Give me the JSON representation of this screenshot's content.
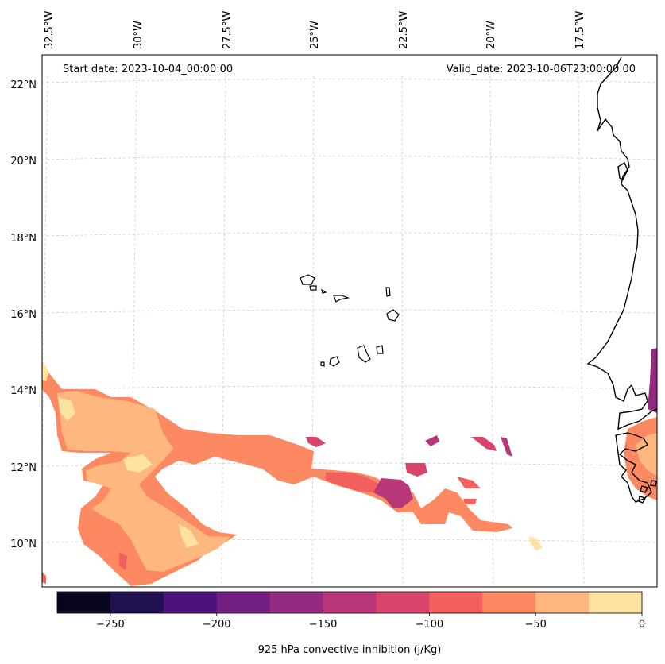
{
  "map": {
    "start_label": "Start date: 2023-10-04_00:00:00",
    "valid_label": "Valid_date: 2023-10-06T23:00:00.00",
    "lon_labels": [
      "32.5°W",
      "30°W",
      "27.5°W",
      "25°W",
      "22.5°W",
      "20°W",
      "17.5°W"
    ],
    "lat_labels": [
      "22°N",
      "20°N",
      "18°N",
      "16°N",
      "14°N",
      "12°N",
      "10°N"
    ],
    "coastline_color": "#000000",
    "gridline_color": "#cccccc",
    "features": [
      "cape-verde-islands",
      "west-africa-coastline",
      "cin-field"
    ]
  },
  "colorbar": {
    "label": "925 hPa convective inhibition (j/Kg)",
    "ticks": [
      "−250",
      "−200",
      "−150",
      "−100",
      "−50",
      "0"
    ],
    "levels": [
      -275,
      -250,
      -225,
      -200,
      -175,
      -150,
      -125,
      -100,
      -75,
      -50,
      -25,
      0
    ],
    "colors": [
      "#07061c",
      "#221150",
      "#4f127b",
      "#721f81",
      "#932b80",
      "#b73779",
      "#d8456c",
      "#f1605d",
      "#fc8961",
      "#feb77e",
      "#fde2a2"
    ]
  }
}
